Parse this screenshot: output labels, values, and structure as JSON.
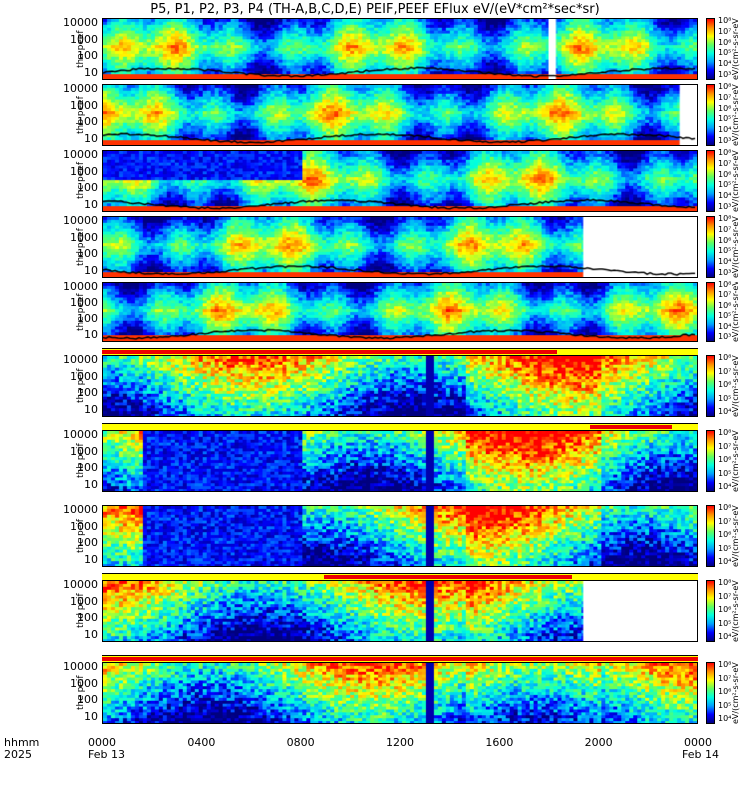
{
  "title": "P5, P1, P2, P3, P4 (TH-A,B,C,D,E) PEIF,PEEF EFlux eV/(eV*cm²*sec*sr)",
  "yticks": [
    "10000",
    "1000",
    "100",
    "10"
  ],
  "colorbar_unit": "eV/(cm²-s-sr-eV)",
  "colorbar_label": "[eV/(cm2-s-sr-eV)]",
  "colorbar_ticks_electron": [
    "10⁸",
    "10⁷",
    "10⁶",
    "10⁵",
    "10⁴",
    "10³"
  ],
  "colorbar_ticks_ion": [
    "10⁸",
    "10⁷",
    "10⁶",
    "10⁵",
    "10⁴"
  ],
  "xaxis": {
    "row1_label": "hhmm",
    "row2_label": "2025",
    "ticks": [
      "0000",
      "0400",
      "0800",
      "1200",
      "1600",
      "2000",
      "0000"
    ],
    "date_start": "Feb 13",
    "date_end": "Feb 14"
  },
  "chart_data": {
    "type": "heatmap",
    "title": "P5, P1, P2, P3, P4 (TH-A,B,C,D,E) PEIF,PEEF EFlux eV/(eV*cm²*sec*sr)",
    "x_range": [
      "2025-02-13 00:00",
      "2025-02-14 00:00"
    ],
    "y_scale": "log",
    "y_range": [
      5,
      30000
    ],
    "panels": [
      {
        "label": "tha peef",
        "species": "electron",
        "ylabel": "tha\npeef",
        "gap": [
          1800,
          1830
        ]
      },
      {
        "label": "thb peef",
        "species": "electron",
        "ylabel": "thb\npeef",
        "gap": [
          2330,
          2400
        ]
      },
      {
        "label": "thc peef",
        "species": "electron",
        "ylabel": "thc\npeef"
      },
      {
        "label": "thd peef",
        "species": "electron",
        "ylabel": "thd\npeef",
        "gap": [
          1940,
          2400
        ]
      },
      {
        "label": "the peef",
        "species": "electron",
        "ylabel": "the\npeef"
      },
      {
        "label": "tha peif",
        "species": "ion",
        "ylabel": "tha\npeif"
      },
      {
        "label": "thb peif",
        "species": "ion",
        "ylabel": "thb\npeif"
      },
      {
        "label": "thc peif",
        "species": "ion",
        "ylabel": "thc\npeif"
      },
      {
        "label": "thd peif",
        "species": "ion",
        "ylabel": "thd\npeif",
        "gap": [
          1940,
          2400
        ]
      },
      {
        "label": "the peif",
        "species": "ion",
        "ylabel": "the\npeif"
      }
    ],
    "colorbar_range_log10": [
      3,
      8
    ],
    "colorscale": [
      "#000080",
      "#0000ff",
      "#00a0ff",
      "#00ffe0",
      "#60ff60",
      "#ffff00",
      "#ff9000",
      "#ff0000"
    ]
  }
}
